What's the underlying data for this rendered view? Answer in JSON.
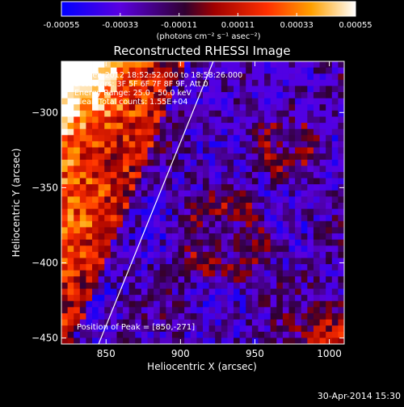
{
  "chart_data": {
    "type": "heatmap",
    "title": "Reconstructed RHESSI Image",
    "xlabel": "Heliocentric X (arcsec)",
    "ylabel": "Heliocentric Y (arcsec)",
    "xlim": [
      820,
      1010
    ],
    "ylim": [
      -454,
      -266
    ],
    "x_ticks": [
      850,
      900,
      950,
      1000
    ],
    "y_ticks": [
      -300,
      -350,
      -400,
      -450
    ],
    "colorbar": {
      "range": [
        -0.00055,
        0.00055
      ],
      "tick_values": [
        -0.00055,
        -0.00033,
        -0.00011,
        0.00011,
        0.00033,
        0.00055
      ],
      "tick_labels": [
        "-0.00055",
        "-0.00033",
        "-0.00011",
        "0.00011",
        "0.00033",
        "0.00055"
      ],
      "unit_label": "(photons cm⁻² s⁻¹ asec⁻²)",
      "colors": [
        "#0000ff",
        "#6a00e8",
        "#2a0028",
        "#ff1100",
        "#ff9900",
        "#ffffff"
      ]
    },
    "annotations": [
      "5-Feb-2012 18:52:52.000 to 18:58:26.000",
      "Detectors: 3F 5F 6F 7F 8F 9F, Att 0",
      "Energy Range: 25.0 - 50.0 keV",
      "Clean     Total counts: 1.55E+04"
    ],
    "peak_label": "Position of Peak = [850,-271]",
    "limb_line": {
      "x": [
        845,
        922
      ],
      "y": [
        -454,
        -266
      ]
    },
    "timestamp": "30-Apr-2014 15:30"
  }
}
